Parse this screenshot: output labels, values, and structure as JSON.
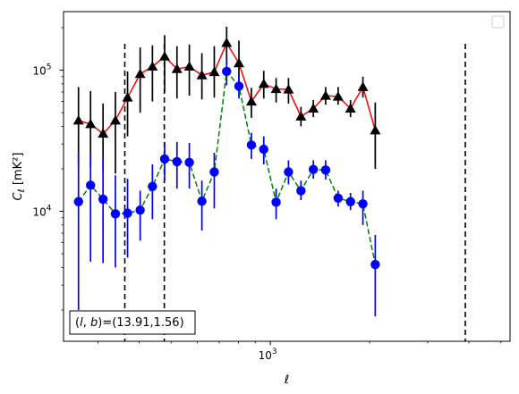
{
  "chart_data": {
    "type": "scatter",
    "title": "",
    "xlabel": "ℓ",
    "ylabel": "C_ℓ [mK²]",
    "xscale": "log",
    "yscale": "log",
    "xlim": [
      236,
      5330
    ],
    "ylim": [
      1200,
      260000
    ],
    "x_tick_labels": [
      {
        "value": 1000,
        "base": "10",
        "exp": "3"
      }
    ],
    "y_tick_labels": [
      {
        "value": 10000,
        "base": "10",
        "exp": "4"
      },
      {
        "value": 100000,
        "base": "10",
        "exp": "5"
      }
    ],
    "grid": false,
    "legend": {
      "position": "top-right",
      "entries": []
    },
    "annotation": {
      "text": "(l, b)=(13.91,1.56)",
      "position": "bottom-left"
    },
    "vertical_lines": [
      {
        "x": 362,
        "style": "dashed",
        "color": "#000000"
      },
      {
        "x": 477,
        "style": "dashed",
        "color": "#000000"
      },
      {
        "x": 3900,
        "style": "dashed",
        "color": "#000000"
      }
    ],
    "series": [
      {
        "marker": "triangle",
        "marker_color": "#000000",
        "line_color": "#ff0000",
        "line_style": "solid",
        "errorbar_color": "#000000",
        "points": [
          {
            "x": 262,
            "y": 44000,
            "ylo": 21000,
            "yhi": 76000
          },
          {
            "x": 285,
            "y": 41500,
            "ylo": 20500,
            "yhi": 71000
          },
          {
            "x": 311,
            "y": 35500,
            "ylo": 19000,
            "yhi": 58000
          },
          {
            "x": 339,
            "y": 44000,
            "ylo": 18500,
            "yhi": 70000
          },
          {
            "x": 369,
            "y": 64000,
            "ylo": 34000,
            "yhi": 98000
          },
          {
            "x": 403,
            "y": 94000,
            "ylo": 50000,
            "yhi": 145000
          },
          {
            "x": 439,
            "y": 106000,
            "ylo": 60000,
            "yhi": 150000
          },
          {
            "x": 478,
            "y": 125000,
            "ylo": 70000,
            "yhi": 177000
          },
          {
            "x": 521,
            "y": 102000,
            "ylo": 63000,
            "yhi": 148000
          },
          {
            "x": 568,
            "y": 106000,
            "ylo": 66000,
            "yhi": 152000
          },
          {
            "x": 620,
            "y": 92000,
            "ylo": 62000,
            "yhi": 132000
          },
          {
            "x": 676,
            "y": 97000,
            "ylo": 64000,
            "yhi": 148000
          },
          {
            "x": 737,
            "y": 156000,
            "ylo": 110000,
            "yhi": 203000
          },
          {
            "x": 803,
            "y": 112000,
            "ylo": 82000,
            "yhi": 162000
          },
          {
            "x": 876,
            "y": 60000,
            "ylo": 46000,
            "yhi": 75000
          },
          {
            "x": 955,
            "y": 80000,
            "ylo": 63000,
            "yhi": 99000
          },
          {
            "x": 1041,
            "y": 73500,
            "ylo": 59000,
            "yhi": 88000
          },
          {
            "x": 1135,
            "y": 73000,
            "ylo": 58000,
            "yhi": 88000
          },
          {
            "x": 1238,
            "y": 47000,
            "ylo": 40000,
            "yhi": 55000
          },
          {
            "x": 1350,
            "y": 53500,
            "ylo": 46500,
            "yhi": 61500
          },
          {
            "x": 1471,
            "y": 66000,
            "ylo": 57000,
            "yhi": 76000
          },
          {
            "x": 1605,
            "y": 65000,
            "ylo": 57000,
            "yhi": 76000
          },
          {
            "x": 1750,
            "y": 53500,
            "ylo": 46500,
            "yhi": 61500
          },
          {
            "x": 1908,
            "y": 76000,
            "ylo": 64000,
            "yhi": 90000
          },
          {
            "x": 2080,
            "y": 37500,
            "ylo": 20000,
            "yhi": 59000
          }
        ]
      },
      {
        "marker": "circle",
        "marker_color": "#0000ff",
        "line_color": "#008000",
        "line_style": "dashed",
        "errorbar_color": "#0000ff",
        "points": [
          {
            "x": 262,
            "y": 11700,
            "ylo": 2000,
            "yhi": 26000
          },
          {
            "x": 285,
            "y": 15300,
            "ylo": 4400,
            "yhi": 26000
          },
          {
            "x": 311,
            "y": 12200,
            "ylo": 4300,
            "yhi": 23500
          },
          {
            "x": 339,
            "y": 9600,
            "ylo": 4000,
            "yhi": 18000
          },
          {
            "x": 369,
            "y": 9700,
            "ylo": 4700,
            "yhi": 17000
          },
          {
            "x": 403,
            "y": 10200,
            "ylo": 6200,
            "yhi": 14000
          },
          {
            "x": 439,
            "y": 15000,
            "ylo": 8800,
            "yhi": 21500
          },
          {
            "x": 478,
            "y": 23500,
            "ylo": 16500,
            "yhi": 31000
          },
          {
            "x": 521,
            "y": 22500,
            "ylo": 14500,
            "yhi": 31000
          },
          {
            "x": 568,
            "y": 22200,
            "ylo": 14500,
            "yhi": 30500
          },
          {
            "x": 620,
            "y": 11800,
            "ylo": 7300,
            "yhi": 16500
          },
          {
            "x": 676,
            "y": 19000,
            "ylo": 10500,
            "yhi": 26000
          },
          {
            "x": 737,
            "y": 98000,
            "ylo": 78000,
            "yhi": 120000
          },
          {
            "x": 803,
            "y": 77000,
            "ylo": 63000,
            "yhi": 92000
          },
          {
            "x": 876,
            "y": 29500,
            "ylo": 23500,
            "yhi": 36000
          },
          {
            "x": 955,
            "y": 27500,
            "ylo": 21500,
            "yhi": 34000
          },
          {
            "x": 1041,
            "y": 11600,
            "ylo": 8800,
            "yhi": 14500
          },
          {
            "x": 1135,
            "y": 19000,
            "ylo": 15500,
            "yhi": 23000
          },
          {
            "x": 1238,
            "y": 14000,
            "ylo": 12000,
            "yhi": 16500
          },
          {
            "x": 1350,
            "y": 19800,
            "ylo": 17000,
            "yhi": 23000
          },
          {
            "x": 1471,
            "y": 19600,
            "ylo": 16800,
            "yhi": 23000
          },
          {
            "x": 1605,
            "y": 12400,
            "ylo": 10800,
            "yhi": 14000
          },
          {
            "x": 1750,
            "y": 11700,
            "ylo": 10200,
            "yhi": 13500
          },
          {
            "x": 1908,
            "y": 11300,
            "ylo": 8000,
            "yhi": 14000
          },
          {
            "x": 2080,
            "y": 4200,
            "ylo": 1800,
            "yhi": 6800
          }
        ]
      }
    ]
  }
}
